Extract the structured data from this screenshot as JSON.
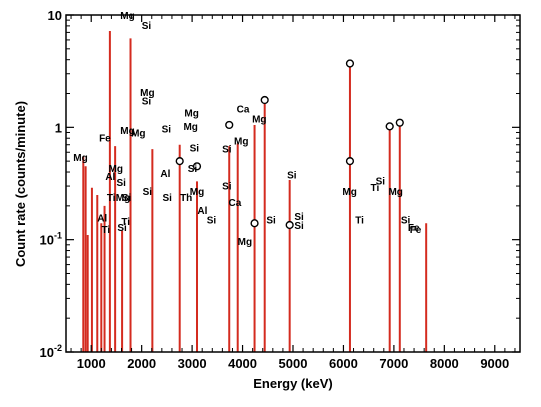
{
  "chart_data": {
    "type": "bar",
    "xlabel": "Energy (keV)",
    "ylabel": "Count rate (counts/minute)",
    "xlim": [
      500,
      9500
    ],
    "ylim": [
      0.01,
      10
    ],
    "yscale": "log",
    "grid": false,
    "legend": "none",
    "line_color": "#d42b1f",
    "x_ticks": [
      1000,
      2000,
      3000,
      4000,
      5000,
      6000,
      7000,
      8000,
      9000
    ],
    "x_tick_labels": [
      "1000",
      "2000",
      "3000",
      "4000",
      "5000",
      "6000",
      "7000",
      "8000",
      "9000"
    ],
    "y_ticks": [
      {
        "value": 0.01,
        "base": "10",
        "exp": "-2"
      },
      {
        "value": 0.1,
        "base": "10",
        "exp": "-1"
      },
      {
        "value": 1,
        "base": "1",
        "exp": ""
      },
      {
        "value": 10,
        "base": "10",
        "exp": ""
      }
    ],
    "peaks": [
      {
        "x": 843,
        "y": 0.55,
        "label": "Mg"
      },
      {
        "x": 889,
        "y": 0.45,
        "label": "Fe"
      },
      {
        "x": 930,
        "y": 0.11,
        "label": "Ti"
      },
      {
        "x": 1014,
        "y": 0.29,
        "label": "Al"
      },
      {
        "x": 1120,
        "y": 0.25,
        "label": "Ti"
      },
      {
        "x": 1200,
        "y": 0.14,
        "label": "Si"
      },
      {
        "x": 1264,
        "y": 0.2,
        "label": "Mg"
      },
      {
        "x": 1370,
        "y": 7.2,
        "label": "Mg"
      },
      {
        "x": 1474,
        "y": 0.68,
        "label": "Mg"
      },
      {
        "x": 1612,
        "y": 0.12,
        "label": "Mg"
      },
      {
        "x": 1779,
        "y": 6.2,
        "label": "Si"
      },
      {
        "x": 2212,
        "y": 0.64,
        "label": "Si"
      },
      {
        "x": 2754,
        "y": 0.7,
        "label": "Mg"
      },
      {
        "x": 3097,
        "y": 0.33,
        "label": "Si"
      },
      {
        "x": 3736,
        "y": 0.68,
        "label": "Ca"
      },
      {
        "x": 3904,
        "y": 0.72,
        "label": "Ca"
      },
      {
        "x": 4238,
        "y": 1.05,
        "label": "Mg"
      },
      {
        "x": 4439,
        "y": 1.75,
        "label": "O"
      },
      {
        "x": 4934,
        "y": 0.34,
        "label": "Si"
      },
      {
        "x": 6129,
        "y": 3.5,
        "label": "O"
      },
      {
        "x": 6917,
        "y": 1.0,
        "label": "O"
      },
      {
        "x": 7117,
        "y": 1.1,
        "label": "O"
      },
      {
        "x": 7640,
        "y": 0.14,
        "label": "Fe"
      }
    ],
    "annotations": [
      {
        "x": 58,
        "y": 0.5,
        "text": "Mg"
      },
      {
        "x": 85,
        "y": 0.75,
        "text": "Fe"
      },
      {
        "x": 97,
        "y": 0.4,
        "text": "Mg"
      },
      {
        "x": 91,
        "y": 0.34,
        "text": "Al"
      },
      {
        "x": 103,
        "y": 0.3,
        "text": "Si"
      },
      {
        "x": 92,
        "y": 0.22,
        "text": "Ti"
      },
      {
        "x": 105,
        "y": 0.22,
        "text": "Mg"
      },
      {
        "x": 109,
        "y": 0.22,
        "text": "Si"
      },
      {
        "x": 82,
        "y": 0.145,
        "text": "Al"
      },
      {
        "x": 86,
        "y": 0.115,
        "text": "Ti"
      },
      {
        "x": 108,
        "y": 0.135,
        "text": "Ti"
      },
      {
        "x": 104,
        "y": 0.12,
        "text": "Si"
      },
      {
        "x": 110,
        "y": 0.875,
        "text": "Mg"
      },
      {
        "x": 122,
        "y": 0.83,
        "text": "Mg"
      },
      {
        "x": 110,
        "y": 9.2,
        "text": "Mg"
      },
      {
        "x": 131,
        "y": 7.5,
        "text": "Si"
      },
      {
        "x": 132,
        "y": 1.9,
        "text": "Mg"
      },
      {
        "x": 131,
        "y": 1.6,
        "text": "Si"
      },
      {
        "x": 132,
        "y": 0.25,
        "text": "Si"
      },
      {
        "x": 153,
        "y": 0.9,
        "text": "Si"
      },
      {
        "x": 152,
        "y": 0.36,
        "text": "Al"
      },
      {
        "x": 154,
        "y": 0.22,
        "text": "Si"
      },
      {
        "x": 181,
        "y": 1.25,
        "text": "Mg"
      },
      {
        "x": 180,
        "y": 0.95,
        "text": "Mg"
      },
      {
        "x": 184,
        "y": 0.61,
        "text": "Si"
      },
      {
        "x": 182,
        "y": 0.4,
        "text": "Si"
      },
      {
        "x": 187,
        "y": 0.25,
        "text": "Mg"
      },
      {
        "x": 175,
        "y": 0.22,
        "text": "Th"
      },
      {
        "x": 193,
        "y": 0.17,
        "text": "Al"
      },
      {
        "x": 203,
        "y": 0.14,
        "text": "Si"
      },
      {
        "x": 220,
        "y": 0.6,
        "text": "Si"
      },
      {
        "x": 220,
        "y": 0.28,
        "text": "Si"
      },
      {
        "x": 229,
        "y": 0.2,
        "text": "Ca"
      },
      {
        "x": 238,
        "y": 1.35,
        "text": "Ca"
      },
      {
        "x": 236,
        "y": 0.7,
        "text": "Mg"
      },
      {
        "x": 256,
        "y": 1.1,
        "text": "Mg"
      },
      {
        "x": 240,
        "y": 0.09,
        "text": "Mg"
      },
      {
        "x": 269,
        "y": 0.14,
        "text": "Si"
      },
      {
        "x": 292,
        "y": 0.35,
        "text": "Si"
      },
      {
        "x": 300,
        "y": 0.15,
        "text": "Si"
      },
      {
        "x": 300,
        "y": 0.125,
        "text": "Si"
      },
      {
        "x": 356,
        "y": 0.25,
        "text": "Mg"
      },
      {
        "x": 384,
        "y": 0.27,
        "text": "Ti"
      },
      {
        "x": 390,
        "y": 0.31,
        "text": "Si"
      },
      {
        "x": 367,
        "y": 0.14,
        "text": "Ti"
      },
      {
        "x": 407,
        "y": 0.25,
        "text": "Mg"
      },
      {
        "x": 418,
        "y": 0.14,
        "text": "Si"
      },
      {
        "x": 427,
        "y": 0.12,
        "text": "Fe"
      },
      {
        "x": 429,
        "y": 0.115,
        "text": "Fe"
      }
    ],
    "circle_markers": [
      {
        "x": 2754,
        "y": 0.5
      },
      {
        "x": 3097,
        "y": 0.45
      },
      {
        "x": 3736,
        "y": 1.05
      },
      {
        "x": 4439,
        "y": 1.75
      },
      {
        "x": 4238,
        "y": 0.14
      },
      {
        "x": 4934,
        "y": 0.135
      },
      {
        "x": 6129,
        "y": 3.7
      },
      {
        "x": 6129,
        "y": 0.5
      },
      {
        "x": 6917,
        "y": 1.02
      },
      {
        "x": 7117,
        "y": 1.1
      }
    ]
  }
}
